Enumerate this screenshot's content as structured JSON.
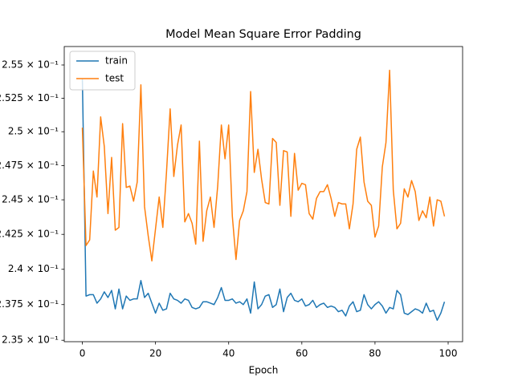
{
  "chart_data": {
    "type": "line",
    "title": "Model Mean Square Error Padding",
    "xlabel": "Epoch",
    "x": [
      0,
      1,
      2,
      3,
      4,
      5,
      6,
      7,
      8,
      9,
      10,
      11,
      12,
      13,
      14,
      15,
      16,
      17,
      18,
      19,
      20,
      21,
      22,
      23,
      24,
      25,
      26,
      27,
      28,
      29,
      30,
      31,
      32,
      33,
      34,
      35,
      36,
      37,
      38,
      39,
      40,
      41,
      42,
      43,
      44,
      45,
      46,
      47,
      48,
      49,
      50,
      51,
      52,
      53,
      54,
      55,
      56,
      57,
      58,
      59,
      60,
      61,
      62,
      63,
      64,
      65,
      66,
      67,
      68,
      69,
      70,
      71,
      72,
      73,
      74,
      75,
      76,
      77,
      78,
      79,
      80,
      81,
      82,
      83,
      84,
      85,
      86,
      87,
      88,
      89,
      90,
      91,
      92,
      93,
      94,
      95,
      96,
      97,
      98,
      99
    ],
    "series": [
      {
        "name": "train",
        "color": "#1f77b4",
        "values": [
          0.254,
          0.2381,
          0.2382,
          0.2382,
          0.2376,
          0.2379,
          0.2384,
          0.238,
          0.2385,
          0.2372,
          0.2386,
          0.2372,
          0.2381,
          0.2378,
          0.2379,
          0.2379,
          0.2392,
          0.238,
          0.2383,
          0.2376,
          0.2369,
          0.2376,
          0.2371,
          0.2372,
          0.2383,
          0.2379,
          0.2378,
          0.2376,
          0.2379,
          0.2378,
          0.2373,
          0.2372,
          0.2373,
          0.2377,
          0.2377,
          0.2376,
          0.2375,
          0.238,
          0.2387,
          0.2378,
          0.2378,
          0.2379,
          0.2376,
          0.2377,
          0.2375,
          0.2379,
          0.2369,
          0.2391,
          0.2372,
          0.2375,
          0.2381,
          0.2382,
          0.2373,
          0.2375,
          0.2386,
          0.237,
          0.238,
          0.2383,
          0.2378,
          0.2377,
          0.2379,
          0.2374,
          0.2375,
          0.2378,
          0.2373,
          0.2375,
          0.2376,
          0.2373,
          0.2374,
          0.2373,
          0.237,
          0.2371,
          0.2367,
          0.2374,
          0.2377,
          0.237,
          0.2371,
          0.2382,
          0.2375,
          0.2372,
          0.2375,
          0.2377,
          0.2374,
          0.2369,
          0.2373,
          0.2372,
          0.2385,
          0.2382,
          0.2369,
          0.2368,
          0.237,
          0.2372,
          0.2371,
          0.2369,
          0.2376,
          0.237,
          0.2371,
          0.2364,
          0.2369,
          0.2377
        ]
      },
      {
        "name": "test",
        "color": "#ff7f0e",
        "values": [
          0.2503,
          0.2417,
          0.2421,
          0.2471,
          0.2452,
          0.2511,
          0.2489,
          0.244,
          0.2481,
          0.2428,
          0.243,
          0.2506,
          0.2459,
          0.246,
          0.2449,
          0.2463,
          0.2535,
          0.2445,
          0.2424,
          0.2406,
          0.2429,
          0.2452,
          0.243,
          0.247,
          0.2517,
          0.2467,
          0.249,
          0.2505,
          0.2434,
          0.244,
          0.2433,
          0.2418,
          0.2493,
          0.242,
          0.2442,
          0.2452,
          0.243,
          0.246,
          0.2505,
          0.248,
          0.2505,
          0.2438,
          0.2407,
          0.2435,
          0.2442,
          0.2456,
          0.253,
          0.247,
          0.2487,
          0.2465,
          0.2448,
          0.2447,
          0.2495,
          0.2492,
          0.2446,
          0.2486,
          0.2485,
          0.2438,
          0.2484,
          0.2457,
          0.2462,
          0.2461,
          0.244,
          0.2436,
          0.2451,
          0.2456,
          0.2456,
          0.2461,
          0.2451,
          0.2438,
          0.2448,
          0.2447,
          0.2447,
          0.2429,
          0.2447,
          0.2487,
          0.2496,
          0.2463,
          0.2449,
          0.2446,
          0.2423,
          0.2431,
          0.2474,
          0.2492,
          0.2546,
          0.2457,
          0.2429,
          0.2433,
          0.2458,
          0.2452,
          0.2464,
          0.2456,
          0.2435,
          0.2442,
          0.2437,
          0.2452,
          0.2431,
          0.245,
          0.2449,
          0.2438
        ]
      }
    ],
    "xlim": [
      -4.95,
      103.95
    ],
    "xticks": [
      0,
      20,
      40,
      60,
      80,
      100
    ],
    "ylim": [
      0.2349,
      0.2564
    ],
    "yscale": "log",
    "yticks": [
      {
        "value": 0.235,
        "label": "2.35 × 10⁻¹"
      },
      {
        "value": 0.2375,
        "label": "2.375 × 10⁻¹"
      },
      {
        "value": 0.24,
        "label": "2.4 × 10⁻¹"
      },
      {
        "value": 0.2425,
        "label": "2.425 × 10⁻¹"
      },
      {
        "value": 0.245,
        "label": "2.45 × 10⁻¹"
      },
      {
        "value": 0.2475,
        "label": "2.475 × 10⁻¹"
      },
      {
        "value": 0.25,
        "label": "2.5 × 10⁻¹"
      },
      {
        "value": 0.2525,
        "label": "2.525 × 10⁻¹"
      },
      {
        "value": 0.255,
        "label": "2.55 × 10⁻¹"
      }
    ],
    "legend": "upper left",
    "grid": false
  }
}
